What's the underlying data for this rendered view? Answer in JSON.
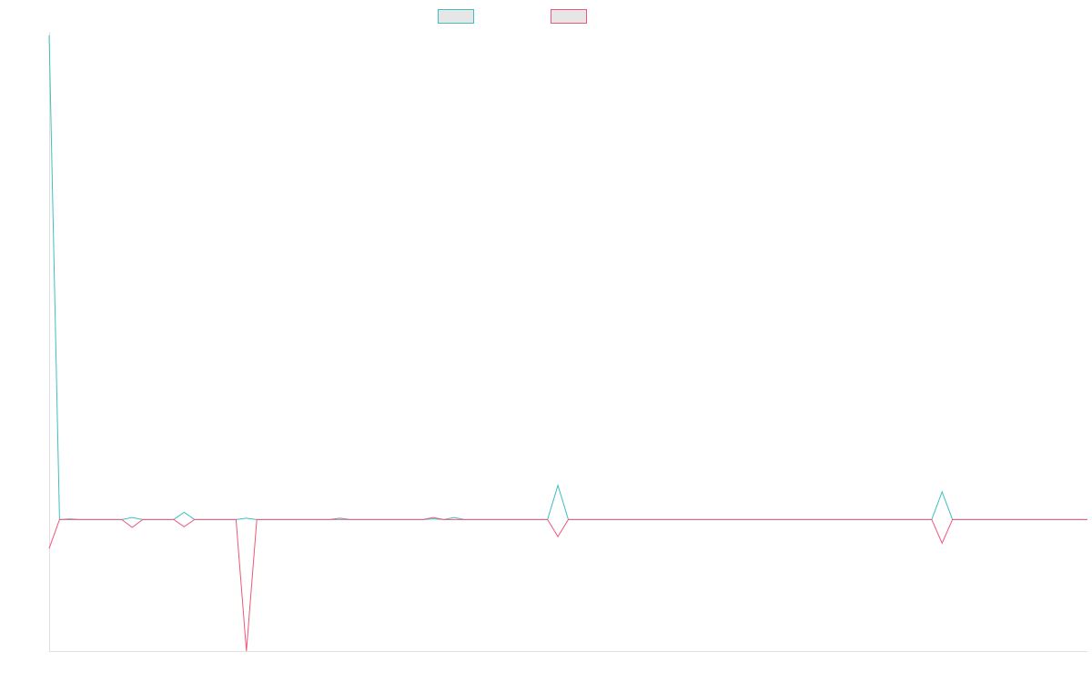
{
  "chart_data": {
    "type": "line",
    "title": "",
    "xlabel": "",
    "ylabel": "",
    "grid": false,
    "legend_position": "top-center",
    "ylim": [
      -100,
      370
    ],
    "x": [
      0,
      1,
      2,
      3,
      4,
      5,
      6,
      7,
      8,
      9,
      10,
      11,
      12,
      13,
      14,
      15,
      16,
      17,
      18,
      19,
      20,
      21,
      22,
      23,
      24,
      25,
      26,
      27,
      28,
      29,
      30,
      31,
      32,
      33,
      34,
      35,
      36,
      37,
      38,
      39,
      40,
      41,
      42,
      43,
      44,
      45,
      46,
      47,
      48,
      49,
      50,
      51,
      52,
      53,
      54,
      55,
      56,
      57,
      58,
      59,
      60,
      61,
      62,
      63,
      64,
      65,
      66,
      67,
      68,
      69,
      70,
      71,
      72,
      73,
      74,
      75,
      76,
      77,
      78,
      79,
      80,
      81,
      82,
      83,
      84,
      85,
      86,
      87,
      88,
      89,
      90,
      91,
      92,
      93,
      94,
      95,
      96,
      97,
      98,
      99,
      100
    ],
    "series": [
      {
        "color": "#3fbfbf",
        "fill": "#e6e6e6",
        "values": [
          368,
          0,
          0.5,
          0,
          0,
          0,
          0,
          0,
          1.5,
          0,
          0,
          0,
          0,
          5.5,
          0,
          0,
          0,
          0,
          0,
          1,
          0,
          0,
          0,
          0,
          0,
          0,
          0,
          0,
          0,
          0,
          0,
          0,
          0,
          0,
          0,
          0,
          0,
          0.5,
          0,
          1.5,
          0,
          0,
          0,
          0,
          0,
          0,
          0,
          0,
          0,
          26,
          0,
          0,
          0,
          0,
          0,
          0,
          0,
          0,
          0,
          0,
          0,
          0,
          0,
          0,
          0,
          0,
          0,
          0,
          0,
          0,
          0,
          0,
          0,
          0,
          0,
          0,
          0,
          0,
          0,
          0,
          0,
          0,
          0,
          0,
          0,
          0,
          21,
          0,
          0,
          0,
          0,
          0,
          0,
          0,
          0,
          0,
          0,
          0,
          0,
          0,
          0
        ]
      },
      {
        "color": "#f0557a",
        "fill": "#e6e6e6",
        "values": [
          -22,
          0,
          0,
          0,
          0,
          0,
          0,
          0,
          -6,
          0,
          0,
          0,
          0,
          -5.5,
          0,
          0,
          0,
          0,
          0,
          -100,
          0,
          0,
          0,
          0,
          0,
          0,
          0,
          0,
          1,
          0,
          0,
          0,
          0,
          0,
          0,
          0,
          0,
          1.5,
          0,
          0,
          0,
          0,
          0,
          0,
          0,
          0,
          0,
          0,
          0,
          -13,
          0,
          0,
          0,
          0,
          0,
          0,
          0,
          0,
          0,
          0,
          0,
          0,
          0,
          0,
          0,
          0,
          0,
          0,
          0,
          0,
          0,
          0,
          0,
          0,
          0,
          0,
          0,
          0,
          0,
          0,
          0,
          0,
          0,
          0,
          0,
          0,
          -18,
          0,
          0,
          0,
          0,
          0,
          0,
          0,
          0,
          0,
          0,
          0,
          0,
          0,
          0
        ]
      }
    ]
  }
}
